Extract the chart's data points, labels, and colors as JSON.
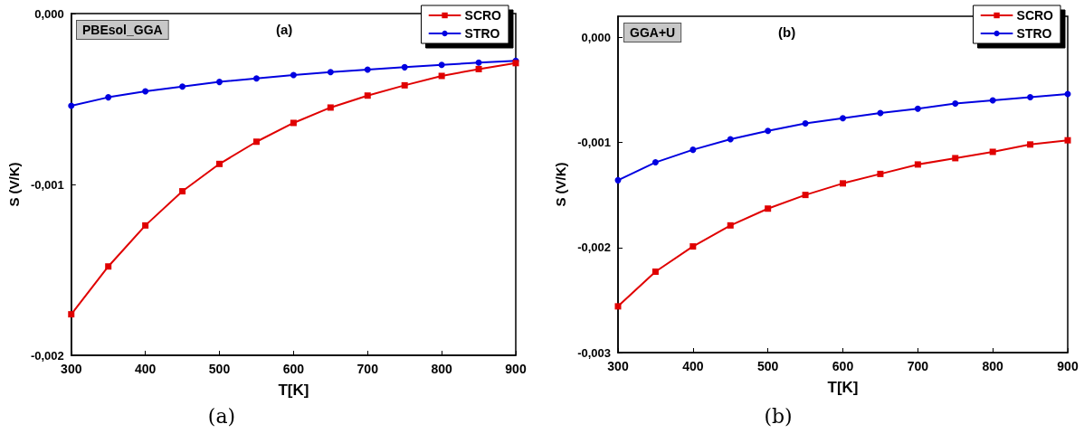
{
  "chart_data": [
    {
      "type": "line",
      "xlabel": "T[K]",
      "ylabel": "S (V/K)",
      "annotations": [
        "PBEsol_GGA",
        "(a)",
        "(a)"
      ],
      "x": [
        300,
        350,
        400,
        450,
        500,
        550,
        600,
        650,
        700,
        750,
        800,
        850,
        900
      ],
      "series": [
        {
          "name": "SCRO",
          "color": "#e00000",
          "marker": "square",
          "values": [
            -0.00176,
            -0.00148,
            -0.00124,
            -0.00104,
            -0.00088,
            -0.00075,
            -0.00064,
            -0.00055,
            -0.00048,
            -0.00042,
            -0.000365,
            -0.000325,
            -0.00029
          ]
        },
        {
          "name": "STRO",
          "color": "#0000e0",
          "marker": "circle",
          "values": [
            -0.00054,
            -0.00049,
            -0.000455,
            -0.000427,
            -0.0004,
            -0.00038,
            -0.00036,
            -0.000343,
            -0.000328,
            -0.000314,
            -0.0003,
            -0.000287,
            -0.000277
          ]
        }
      ],
      "xlim": [
        300,
        900
      ],
      "xticks": [
        300,
        400,
        500,
        600,
        700,
        800,
        900
      ],
      "ylim": [
        -0.002,
        0
      ],
      "yticks": [
        {
          "value": -0.002,
          "label": "-0,002"
        },
        {
          "value": -0.001,
          "label": "-0,001"
        },
        {
          "value": 0,
          "label": "0,000"
        }
      ],
      "legend": "top right",
      "grid": false,
      "line_style": "solid"
    },
    {
      "type": "line",
      "xlabel": "T[K]",
      "ylabel": "S (V/K)",
      "annotations": [
        "GGA+U",
        "(b)",
        "(b)"
      ],
      "x": [
        300,
        350,
        400,
        450,
        500,
        550,
        600,
        650,
        700,
        750,
        800,
        850,
        900
      ],
      "series": [
        {
          "name": "SCRO",
          "color": "#e00000",
          "marker": "square",
          "values": [
            -0.00256,
            -0.00223,
            -0.00199,
            -0.00179,
            -0.00163,
            -0.0015,
            -0.00139,
            -0.0013,
            -0.00121,
            -0.00115,
            -0.00109,
            -0.00102,
            -0.00098
          ]
        },
        {
          "name": "STRO",
          "color": "#0000e0",
          "marker": "circle",
          "values": [
            -0.00136,
            -0.00119,
            -0.00107,
            -0.00097,
            -0.00089,
            -0.00082,
            -0.00077,
            -0.00072,
            -0.00068,
            -0.00063,
            -0.0006,
            -0.00057,
            -0.00054
          ]
        }
      ],
      "xlim": [
        300,
        900
      ],
      "xticks": [
        300,
        400,
        500,
        600,
        700,
        800,
        900
      ],
      "ylim": [
        -0.003,
        0.0002
      ],
      "yticks": [
        {
          "value": -0.003,
          "label": "-0,003"
        },
        {
          "value": -0.002,
          "label": "-0,002"
        },
        {
          "value": -0.001,
          "label": "-0,001"
        },
        {
          "value": 0,
          "label": "0,000"
        }
      ],
      "legend": "top right",
      "grid": false,
      "line_style": "solid"
    }
  ]
}
